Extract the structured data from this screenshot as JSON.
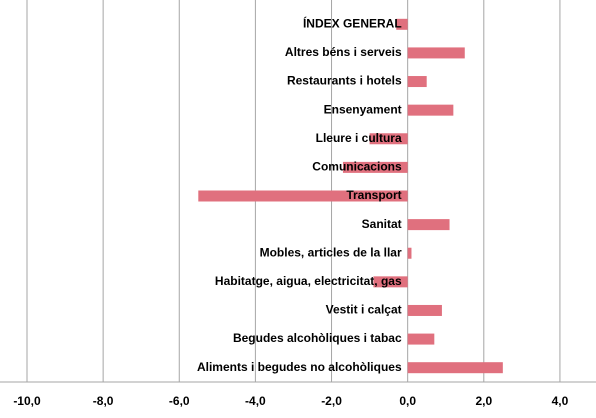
{
  "chart_data": {
    "type": "barh",
    "categories": [
      "ÍNDEX GENERAL",
      "Altres béns i serveis",
      "Restaurants i hotels",
      "Ensenyament",
      "Lleure i cultura",
      "Comunicacions",
      "Transport",
      "Sanitat",
      "Mobles, articles de la llar",
      "Habitatge, aigua, electricitat, gas",
      "Vestit i calçat",
      "Begudes alcohòliques i tabac",
      "Aliments i begudes no alcohòliques"
    ],
    "values": [
      -0.3,
      1.5,
      0.5,
      1.2,
      -1.0,
      -1.7,
      -5.5,
      1.1,
      0.1,
      -0.9,
      0.9,
      0.7,
      2.5
    ],
    "color": "#e0707e",
    "xlim": [
      -10,
      5
    ],
    "xticks": [
      {
        "value": -10,
        "label": "-10,0"
      },
      {
        "value": -8,
        "label": "-8,0"
      },
      {
        "value": -6,
        "label": "-6,0"
      },
      {
        "value": -4,
        "label": "-4,0"
      },
      {
        "value": -2,
        "label": "-2,0"
      },
      {
        "value": 0,
        "label": "0,0"
      },
      {
        "value": 2,
        "label": "2,0"
      },
      {
        "value": 4,
        "label": "4,0"
      }
    ],
    "grid": true
  }
}
